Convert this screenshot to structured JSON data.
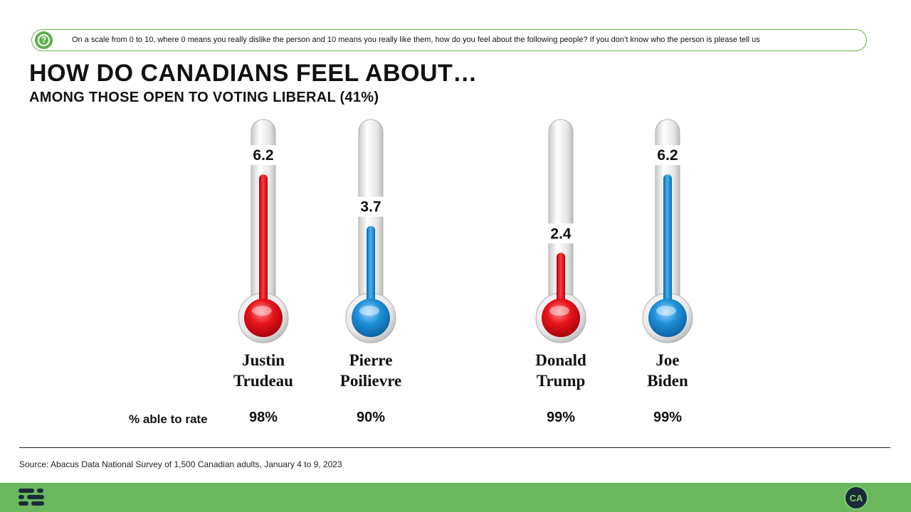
{
  "question": {
    "icon": "question-icon",
    "text": "On a scale from 0 to 10, where 0 means you really dislike the person and 10 means you really like them, how do you feel about the following people? If you don’t know who the person is please tell us"
  },
  "title": "HOW DO CANADIANS FEEL ABOUT…",
  "subtitle": "AMONG THOSE OPEN TO VOTING LIBERAL (41%)",
  "rate_label": "% able to rate",
  "source": "Source: Abacus Data National Survey of 1,500 Canadian adults, January 4 to 9, 2023",
  "footer": {
    "logo_left": "abacus-logo-icon",
    "logo_right": "CA"
  },
  "colors": {
    "red": "#e8141b",
    "blue": "#1e8fd8",
    "accent_green": "#6ab75e"
  },
  "chart_data": {
    "type": "bar",
    "style": "thermometer",
    "scale": [
      0,
      10
    ],
    "categories": [
      "Justin Trudeau",
      "Pierre Poilievre",
      "Donald Trump",
      "Joe Biden"
    ],
    "name_lines": [
      [
        "Justin",
        "Trudeau"
      ],
      [
        "Pierre",
        "Poilievre"
      ],
      [
        "Donald",
        "Trump"
      ],
      [
        "Joe",
        "Biden"
      ]
    ],
    "values": [
      6.2,
      3.7,
      2.4,
      6.2
    ],
    "value_labels": [
      "6.2",
      "3.7",
      "2.4",
      "6.2"
    ],
    "colors": [
      "red",
      "blue",
      "red",
      "blue"
    ],
    "able_to_rate": [
      "98%",
      "90%",
      "99%",
      "99%"
    ]
  }
}
